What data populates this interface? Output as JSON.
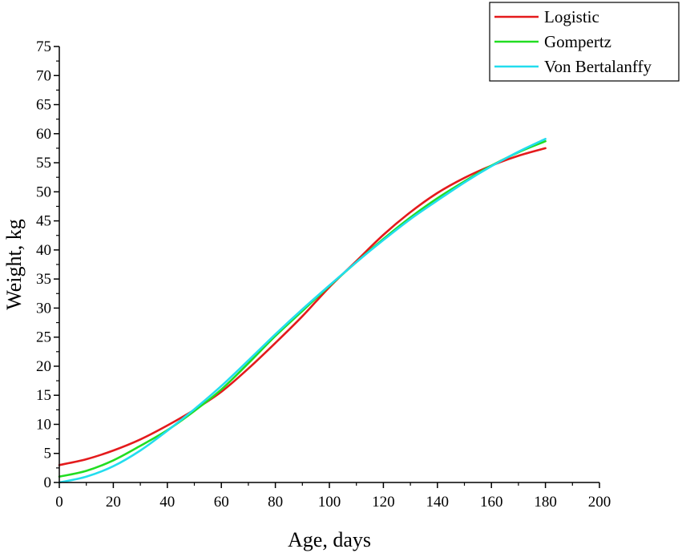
{
  "chart_data": {
    "type": "line",
    "xlabel": "Age, days",
    "ylabel": "Weight, kg",
    "xlim": [
      0,
      200
    ],
    "ylim": [
      0,
      75
    ],
    "x_ticks": [
      0,
      20,
      40,
      60,
      80,
      100,
      120,
      140,
      160,
      180,
      200
    ],
    "y_ticks": [
      0,
      5,
      10,
      15,
      20,
      25,
      30,
      35,
      40,
      45,
      50,
      55,
      60,
      65,
      70,
      75
    ],
    "grid": false,
    "legend_position": "top-right",
    "series": [
      {
        "name": "Logistic",
        "color": "#e41a1c",
        "x": [
          0,
          10,
          20,
          30,
          40,
          50,
          60,
          70,
          80,
          90,
          100,
          110,
          120,
          130,
          140,
          150,
          160,
          170,
          180
        ],
        "y": [
          3.0,
          4.0,
          5.5,
          7.4,
          9.8,
          12.5,
          15.6,
          19.6,
          24.0,
          28.6,
          33.6,
          38.1,
          42.6,
          46.5,
          49.8,
          52.4,
          54.5,
          56.2,
          57.5
        ]
      },
      {
        "name": "Gompertz",
        "color": "#22dd22",
        "x": [
          0,
          10,
          20,
          30,
          40,
          50,
          60,
          70,
          80,
          90,
          100,
          110,
          120,
          130,
          140,
          150,
          160,
          170,
          180
        ],
        "y": [
          1.0,
          2.0,
          3.8,
          6.3,
          9.0,
          12.3,
          16.0,
          20.5,
          25.2,
          29.5,
          33.8,
          37.9,
          41.9,
          45.6,
          48.9,
          51.8,
          54.5,
          56.8,
          58.7
        ]
      },
      {
        "name": "Von Bertalanffy",
        "color": "#22ddee",
        "x": [
          0,
          10,
          20,
          30,
          40,
          50,
          60,
          70,
          80,
          90,
          100,
          110,
          120,
          130,
          140,
          150,
          160,
          170,
          180
        ],
        "y": [
          0.0,
          1.0,
          2.8,
          5.5,
          8.9,
          12.6,
          16.6,
          21.0,
          25.5,
          29.8,
          33.9,
          37.9,
          41.7,
          45.3,
          48.5,
          51.6,
          54.4,
          56.9,
          59.1
        ]
      }
    ]
  }
}
